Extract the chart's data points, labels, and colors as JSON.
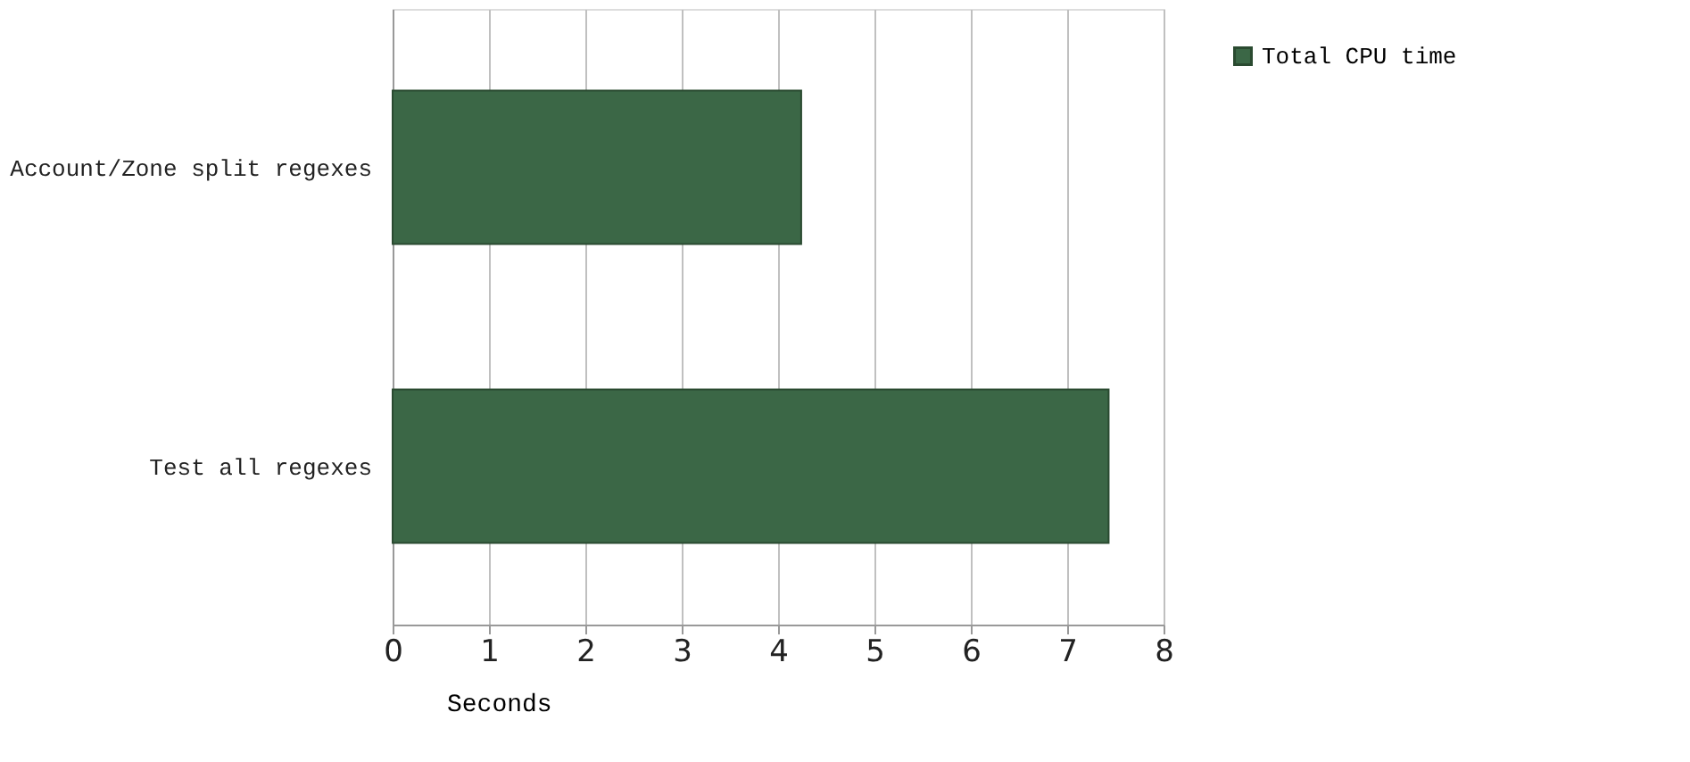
{
  "chart_data": {
    "type": "bar",
    "orientation": "horizontal",
    "xlabel": "Seconds",
    "categories": [
      "Account/Zone split regexes",
      "Test all regexes"
    ],
    "series": [
      {
        "name": "Total CPU time",
        "color": "#3b6746",
        "values": [
          4.24,
          7.43
        ]
      }
    ],
    "xlim": [
      0,
      8
    ],
    "xticks": [
      0,
      1,
      2,
      3,
      4,
      5,
      6,
      7,
      8
    ],
    "grid": "x",
    "legend": "right"
  }
}
